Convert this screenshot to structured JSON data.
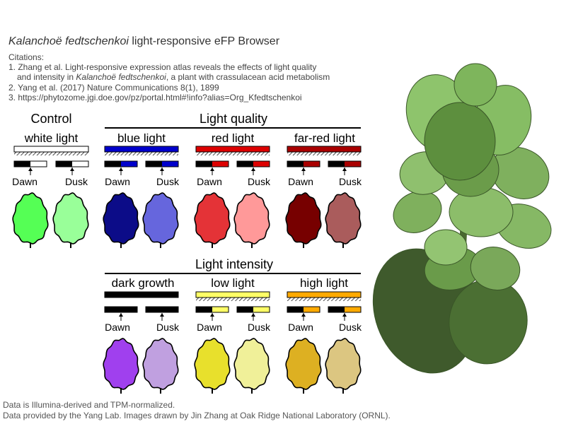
{
  "header": {
    "title_species": "Kalanchoë fedtschenkoi",
    "title_rest": " light-responsive eFP Browser",
    "citations_label": "Citations:",
    "citation_1a": "1. Zhang et al. Light-responsive expression atlas reveals the effects of light quality",
    "citation_1b_pre": "    and intensity in ",
    "citation_1b_species": "Kalanchoë fedtschenkoi",
    "citation_1b_post": ", a plant with crassulacean acid metabolism",
    "citation_2": "2. Yang et al. (2017) Nature Communications 8(1), 1899",
    "citation_3": "3. https://phytozome.jgi.doe.gov/pz/portal.html#!info?alias=Org_Kfedtschenkoi"
  },
  "groups": {
    "control": "Control",
    "light_quality": "Light quality",
    "light_intensity": "Light intensity"
  },
  "conditions": {
    "white": "white light",
    "blue": "blue light",
    "red": "red light",
    "farred": "far-red light",
    "dark": "dark growth",
    "low": "low light",
    "high": "high light"
  },
  "labels": {
    "dawn": "Dawn",
    "dusk": "Dusk"
  },
  "colors": {
    "white_bar": "#ffffff",
    "blue_bar": "#0000cc",
    "red_bar": "#dd0000",
    "farred_bar": "#aa0000",
    "dark_bar": "#000000",
    "low_bar": "#ffff66",
    "high_bar": "#ffaa00",
    "leaf_white_dawn": "#55ff55",
    "leaf_white_dusk": "#99ff99",
    "leaf_blue_dawn": "#0c0c88",
    "leaf_blue_dusk": "#6666dd",
    "leaf_red_dawn": "#e43337",
    "leaf_red_dusk": "#ff9999",
    "leaf_farred_dawn": "#770000",
    "leaf_farred_dusk": "#aa5c5c",
    "leaf_dark_dawn": "#a040ee",
    "leaf_dark_dusk": "#c0a0e0",
    "leaf_low_dawn": "#e8e02c",
    "leaf_low_dusk": "#f0f099",
    "leaf_high_dawn": "#ddb022",
    "leaf_high_dusk": "#dcc681"
  },
  "footer": {
    "line1": "Data is Illumina-derived and TPM-normalized.",
    "line2": "Data provided by the Yang Lab. Images drawn by Jin Zhang at Oak Ridge National Laboratory (ORNL)."
  }
}
